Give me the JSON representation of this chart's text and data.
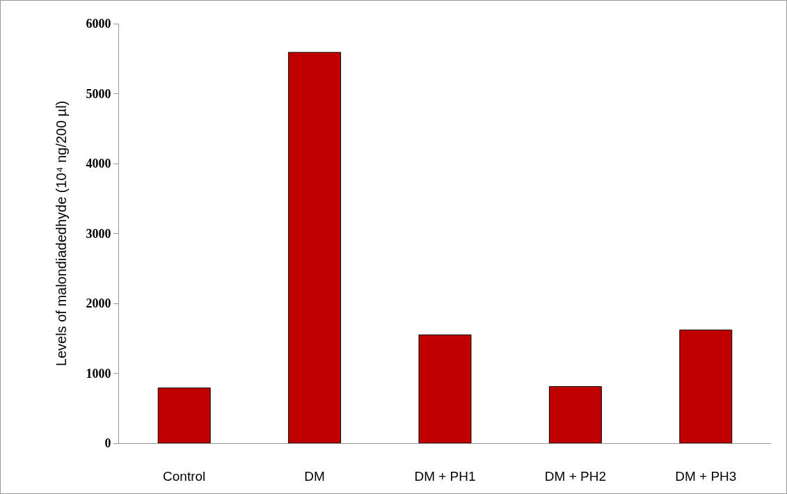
{
  "chart_data": {
    "type": "bar",
    "ylabel": "Levels of malondiadedhyde (10⁴ ng/200 µl)",
    "categories": [
      "Control",
      "DM",
      "DM + PH1",
      "DM + PH2",
      "DM + PH3"
    ],
    "values": [
      790,
      5590,
      1550,
      810,
      1620
    ],
    "color": "#c00000",
    "ylim": [
      0,
      6000
    ],
    "yticks": [
      0,
      1000,
      2000,
      3000,
      4000,
      5000,
      6000
    ],
    "grid": false
  }
}
